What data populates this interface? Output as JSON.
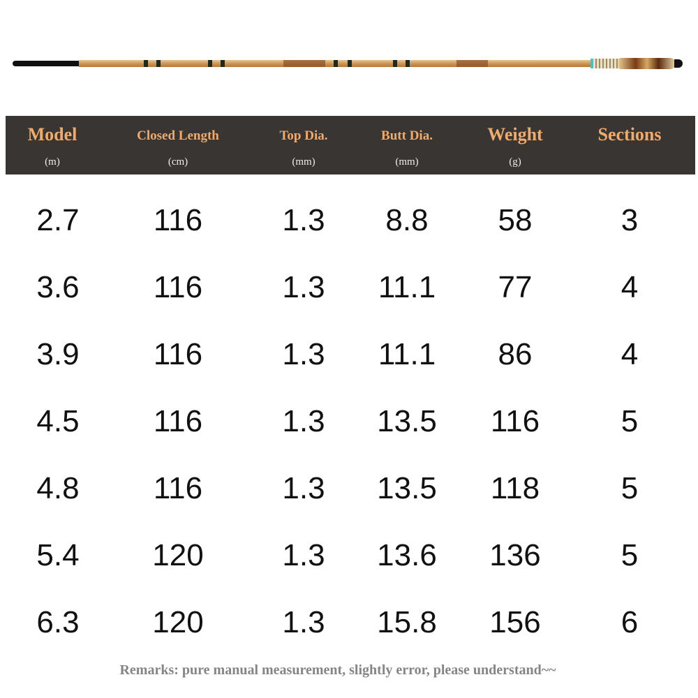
{
  "header": {
    "columns": [
      {
        "title": "Model",
        "unit": "(m)"
      },
      {
        "title": "Closed Length",
        "unit": "(cm)"
      },
      {
        "title": "Top Dia.",
        "unit": "(mm)"
      },
      {
        "title": "Butt Dia.",
        "unit": "(mm)"
      },
      {
        "title": "Weight",
        "unit": "(g)"
      },
      {
        "title": "Sections",
        "unit": ""
      }
    ]
  },
  "rows": [
    [
      "2.7",
      "116",
      "1.3",
      "8.8",
      "58",
      "3"
    ],
    [
      "3.6",
      "116",
      "1.3",
      "11.1",
      "77",
      "4"
    ],
    [
      "3.9",
      "116",
      "1.3",
      "11.1",
      "86",
      "4"
    ],
    [
      "4.5",
      "116",
      "1.3",
      "13.5",
      "116",
      "5"
    ],
    [
      "4.8",
      "116",
      "1.3",
      "13.5",
      "118",
      "5"
    ],
    [
      "5.4",
      "120",
      "1.3",
      "13.6",
      "136",
      "5"
    ],
    [
      "6.3",
      "120",
      "1.3",
      "15.8",
      "156",
      "6"
    ]
  ],
  "remark": "Remarks: pure manual measurement, slightly error, please understand~~",
  "colors": {
    "header_bg": "#383533",
    "header_text": "#f0aa6a",
    "remark": "#858585"
  }
}
